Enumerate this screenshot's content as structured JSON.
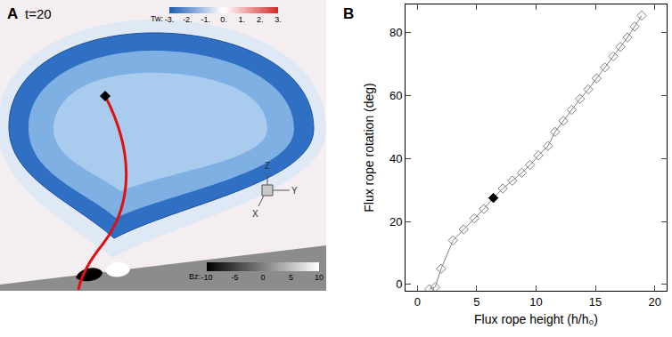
{
  "chart_data": [
    {
      "type": "image",
      "label": "A",
      "title": "t=20",
      "annotations": [
        "Z",
        "Y",
        "X"
      ],
      "colorbars": [
        {
          "title": "Tw:",
          "range": [
            -3,
            3
          ],
          "ticks": [
            {
              "value": -3,
              "label": "-3."
            },
            {
              "value": -2,
              "label": "-2."
            },
            {
              "value": -1,
              "label": "-1."
            },
            {
              "value": 0,
              "label": "0."
            },
            {
              "value": 1,
              "label": "1."
            },
            {
              "value": 2,
              "label": "2."
            },
            {
              "value": 3,
              "label": "3."
            }
          ],
          "colors": [
            "#1f5db8",
            "#ffffff",
            "#d42a2a"
          ]
        },
        {
          "title": "Bz:",
          "range": [
            -10,
            10
          ],
          "ticks": [
            -10,
            -5,
            0,
            5,
            10
          ],
          "colors": [
            "#000000",
            "#ffffff"
          ]
        }
      ]
    },
    {
      "type": "line",
      "label": "B",
      "x_label": "Flux rope height (h/h₀)",
      "y_label": "Flux rope rotation (deg)",
      "xlim": [
        -1,
        21
      ],
      "xticks": [
        0,
        5,
        10,
        15,
        20
      ],
      "ylim": [
        -2,
        89
      ],
      "yticks": [
        0,
        20,
        40,
        60,
        80
      ],
      "grid": false,
      "series": [
        {
          "color": "#808080",
          "marker": "diamond-open",
          "line_style": "solid",
          "x": [
            1.0,
            1.5,
            2.0,
            3.0,
            3.9,
            4.8,
            5.6,
            6.4,
            7.2,
            8.0,
            8.8,
            9.5,
            10.2,
            11.0,
            11.6,
            12.3,
            13.0,
            13.7,
            14.4,
            15.1,
            15.8,
            16.5,
            17.1,
            17.7,
            18.3,
            18.9
          ],
          "values": [
            -1.5,
            -0.8,
            5,
            14,
            17.5,
            21,
            24,
            27.5,
            30.5,
            33,
            35.5,
            38,
            41,
            44,
            48.5,
            52,
            55.5,
            59,
            62,
            65.5,
            69,
            72.5,
            75.5,
            78.5,
            82,
            85.5
          ]
        },
        {
          "color": "#000000",
          "marker": "diamond",
          "line_style": "none",
          "x": [
            6.4
          ],
          "values": [
            27.5
          ]
        }
      ]
    }
  ]
}
